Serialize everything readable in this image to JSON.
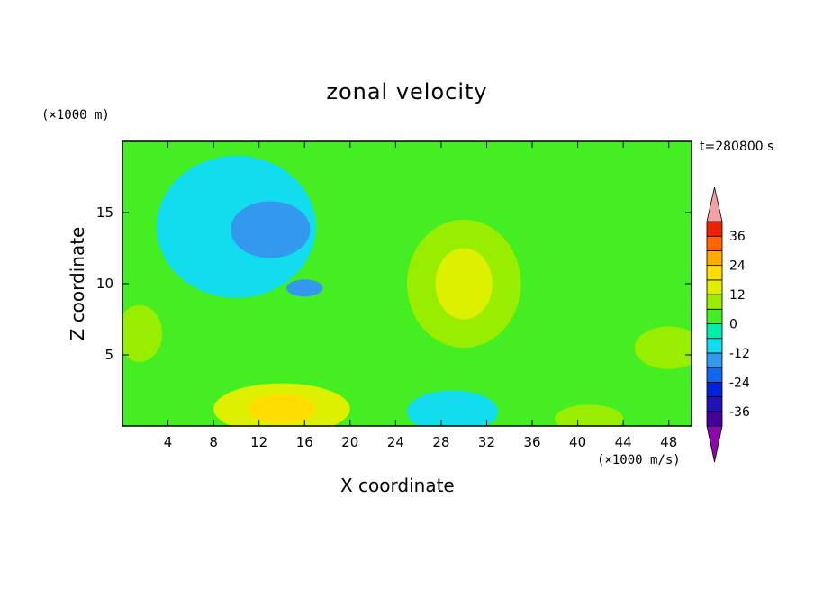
{
  "chart_data": {
    "type": "heatmap",
    "title": "zonal velocity",
    "xlabel": "X coordinate",
    "ylabel": "Z coordinate",
    "x_unit": "(×1000 m/s)",
    "y_unit": "(×1000 m)",
    "time_label": "t=280800 s",
    "xlim": [
      0,
      50
    ],
    "ylim": [
      0,
      20
    ],
    "x_ticks": [
      4,
      8,
      12,
      16,
      20,
      24,
      28,
      32,
      36,
      40,
      44,
      48
    ],
    "y_ticks": [
      5,
      10,
      15
    ],
    "colorbar": {
      "ticks": [
        36,
        24,
        12,
        0,
        -12,
        -24,
        -36
      ],
      "levels": [
        -42,
        -36,
        -30,
        -24,
        -18,
        -12,
        -6,
        0,
        6,
        12,
        18,
        24,
        30,
        36,
        42
      ],
      "colors": [
        "#440099",
        "#2211bb",
        "#0022dd",
        "#1166ee",
        "#3399ee",
        "#11ddee",
        "#00eeaa",
        "#44ee22",
        "#99ee00",
        "#ddf000",
        "#ffdd00",
        "#ffaa00",
        "#ff6600",
        "#ee2200"
      ],
      "under_color": "#8a0aa8",
      "over_color": "#f2a0a0"
    },
    "background_level": 2,
    "features": [
      {
        "name": "upper-left negative region",
        "level": -8,
        "center": [
          10,
          14
        ],
        "radius": [
          7,
          5
        ]
      },
      {
        "name": "upper-left core",
        "level": -18,
        "center": [
          13,
          13.8
        ],
        "radius": [
          3.5,
          2
        ]
      },
      {
        "name": "small negative lobe",
        "level": -16,
        "center": [
          16,
          9.7
        ],
        "radius": [
          1.6,
          0.6
        ]
      },
      {
        "name": "center positive jet",
        "level": 10,
        "center": [
          30,
          10
        ],
        "radius": [
          5,
          4.5
        ]
      },
      {
        "name": "center positive core",
        "level": 15,
        "center": [
          30,
          10
        ],
        "radius": [
          2.5,
          2.5
        ]
      },
      {
        "name": "bottom positive jet",
        "level": 14,
        "center": [
          14,
          1.2
        ],
        "radius": [
          6,
          1.8
        ]
      },
      {
        "name": "bottom positive core",
        "level": 19,
        "center": [
          14,
          1.2
        ],
        "radius": [
          3,
          1
        ]
      },
      {
        "name": "bottom center negative",
        "level": -10,
        "center": [
          29,
          1
        ],
        "radius": [
          4,
          1.5
        ]
      },
      {
        "name": "right positive lobe",
        "level": 10,
        "center": [
          48,
          5.5
        ],
        "radius": [
          3,
          1.5
        ]
      },
      {
        "name": "bottom right positive",
        "level": 10,
        "center": [
          41,
          0.5
        ],
        "radius": [
          3,
          1
        ]
      },
      {
        "name": "left positive lobe",
        "level": 6,
        "center": [
          1.5,
          6.5
        ],
        "radius": [
          2,
          2
        ]
      }
    ]
  }
}
